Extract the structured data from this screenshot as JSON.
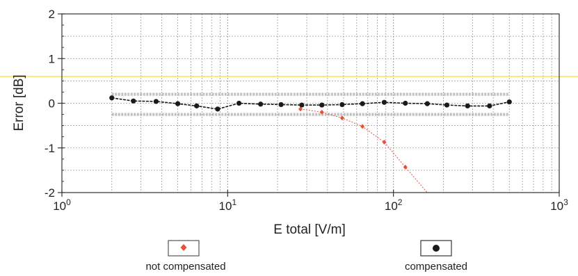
{
  "chart_data": {
    "type": "scatter",
    "title": "",
    "xlabel": "E total [V/m]",
    "ylabel": "Error [dB]",
    "xscale": "log",
    "xlim": [
      1,
      1000
    ],
    "ylim": [
      -2,
      2
    ],
    "grid": true,
    "x_ticks": [
      {
        "value": 1,
        "base": "10",
        "exp": "0"
      },
      {
        "value": 10,
        "base": "10",
        "exp": "1"
      },
      {
        "value": 100,
        "base": "10",
        "exp": "2"
      },
      {
        "value": 1000,
        "base": "10",
        "exp": "3"
      }
    ],
    "y_ticks": [
      {
        "value": 2,
        "label": "2"
      },
      {
        "value": 1,
        "label": "1"
      },
      {
        "value": 0,
        "label": "0"
      },
      {
        "value": -1,
        "label": "-1"
      },
      {
        "value": -2,
        "label": "-2"
      }
    ],
    "reference_line_y": 0.6,
    "tolerance_band": {
      "upper": 0.2,
      "lower": -0.25,
      "x_start": 2,
      "x_end": 500
    },
    "legend_placement": "bottom",
    "series": [
      {
        "name": "not compensated",
        "marker": "diamond",
        "color": "#e8503c",
        "points": [
          [
            27.5,
            -0.13
          ],
          [
            37,
            -0.2
          ],
          [
            49,
            -0.33
          ],
          [
            65,
            -0.52
          ],
          [
            88,
            -0.87
          ],
          [
            118,
            -1.43
          ],
          [
            160,
            -2.0
          ]
        ]
      },
      {
        "name": "compensated",
        "marker": "circle",
        "color": "#1a1a1a",
        "points": [
          [
            2,
            0.12
          ],
          [
            2.7,
            0.05
          ],
          [
            3.7,
            0.04
          ],
          [
            5,
            -0.01
          ],
          [
            6.5,
            -0.06
          ],
          [
            8.7,
            -0.13
          ],
          [
            11.7,
            0.0
          ],
          [
            15.8,
            -0.02
          ],
          [
            21,
            -0.03
          ],
          [
            28,
            -0.04
          ],
          [
            37,
            -0.04
          ],
          [
            49,
            -0.03
          ],
          [
            65,
            -0.01
          ],
          [
            88,
            0.02
          ],
          [
            118,
            0.0
          ],
          [
            160,
            -0.01
          ],
          [
            210,
            -0.04
          ],
          [
            280,
            -0.06
          ],
          [
            380,
            -0.06
          ],
          [
            500,
            0.03
          ]
        ]
      }
    ]
  },
  "colors": {
    "reference_line": "#f3e54a",
    "grid": "#9a9a9a",
    "band": "#a8a8a8",
    "axis": "#333333"
  }
}
